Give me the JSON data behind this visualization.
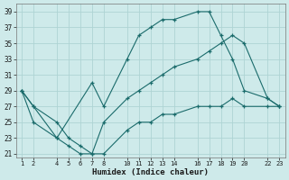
{
  "xlabel": "Humidex (Indice chaleur)",
  "bg_color": "#ceeaea",
  "grid_color": "#aed4d4",
  "line_color": "#1a6b6b",
  "ylim": [
    20.5,
    40
  ],
  "xlim": [
    0.5,
    23.5
  ],
  "yticks": [
    21,
    23,
    25,
    27,
    29,
    31,
    33,
    35,
    37,
    39
  ],
  "xtick_positions": [
    1,
    2,
    4,
    5,
    6,
    7,
    8,
    10,
    11,
    12,
    13,
    14,
    16,
    17,
    18,
    19,
    20,
    22,
    23
  ],
  "xtick_labels": [
    "1",
    "2",
    "4",
    "5",
    "6",
    "7",
    "8",
    "10",
    "11",
    "12",
    "13",
    "14",
    "16",
    "17",
    "18",
    "19",
    "20",
    "22",
    "23"
  ],
  "series": [
    {
      "x": [
        1,
        2,
        4,
        5,
        6,
        7,
        8,
        10,
        11,
        12,
        13,
        14,
        16,
        17,
        18,
        19,
        20,
        22,
        23
      ],
      "y": [
        29,
        27,
        25,
        23,
        22,
        21,
        21,
        24,
        25,
        25,
        26,
        26,
        27,
        27,
        27,
        28,
        27,
        27,
        27
      ]
    },
    {
      "x": [
        1,
        2,
        4,
        7,
        8,
        10,
        11,
        12,
        13,
        14,
        16,
        17,
        18,
        19,
        20,
        22,
        23
      ],
      "y": [
        29,
        27,
        23,
        30,
        27,
        33,
        36,
        37,
        38,
        38,
        39,
        39,
        36,
        33,
        29,
        28,
        27
      ]
    },
    {
      "x": [
        1,
        2,
        4,
        5,
        6,
        7,
        8,
        10,
        11,
        12,
        13,
        14,
        16,
        17,
        18,
        19,
        20,
        22,
        23
      ],
      "y": [
        29,
        25,
        23,
        22,
        21,
        21,
        25,
        28,
        29,
        30,
        31,
        32,
        33,
        34,
        35,
        36,
        35,
        28,
        27
      ]
    }
  ]
}
